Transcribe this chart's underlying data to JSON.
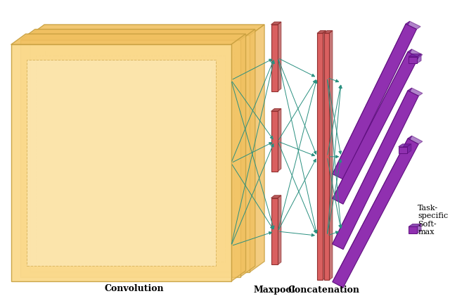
{
  "fig_width": 6.4,
  "fig_height": 4.38,
  "dpi": 100,
  "bg_color": "#ffffff",
  "conv_face_color": "#fad98c",
  "conv_edge_color": "#c8a040",
  "conv_inner_color": "#fdecc0",
  "conv_side_color": "#f0c060",
  "maxpool_color": "#d96060",
  "maxpool_edge_color": "#903030",
  "maxpool_side_color": "#b04040",
  "fc_color": "#9030b0",
  "fc_edge_color": "#601080",
  "fc_side_color": "#7020a0",
  "arrow_color": "#2a9080",
  "label_convolution": "Convolution",
  "label_maxpool": "Maxpool",
  "label_concatenation": "Concatenation",
  "label_taskspecific": "Task-\nspecific\nSoft-\nmax",
  "label_fontsize": 9,
  "label_fontweight": "bold"
}
